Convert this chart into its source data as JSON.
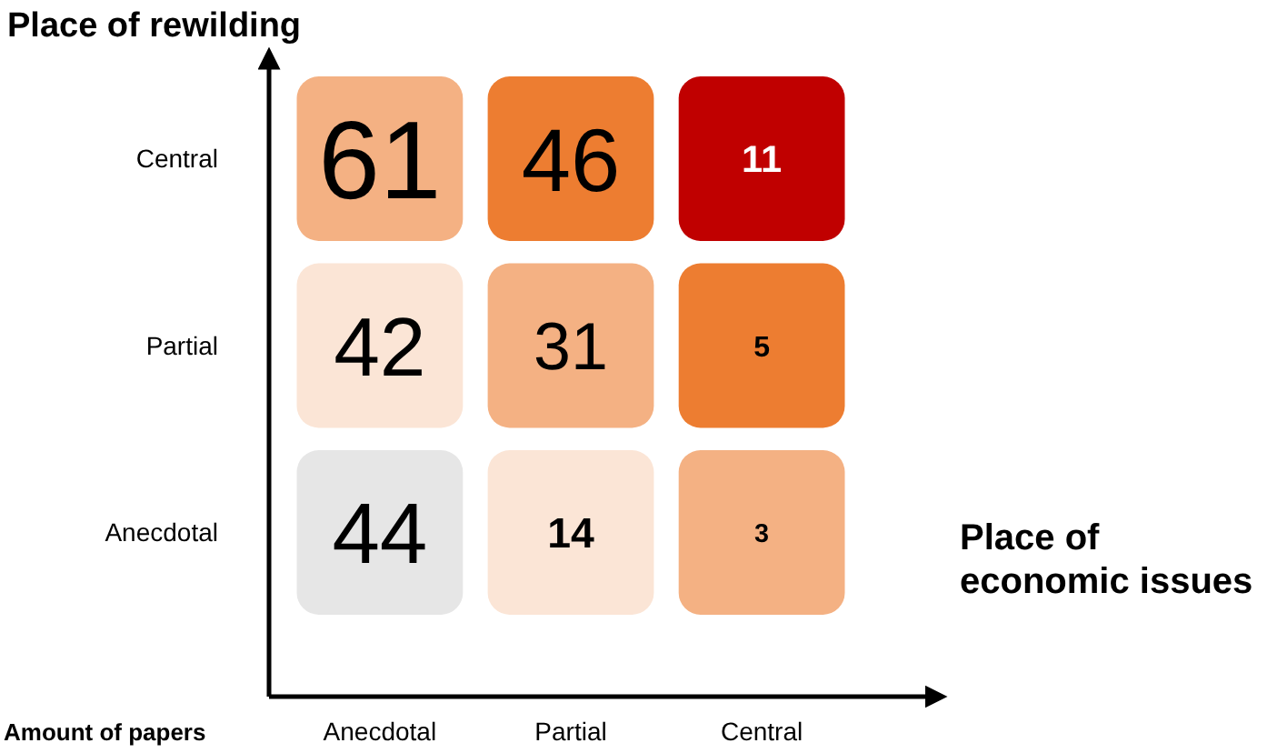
{
  "chart_data": {
    "type": "heatmap",
    "title": "Place of rewilding",
    "xlabel": "Place of economic issues",
    "annotations": [
      "Amount of papers"
    ],
    "data_labels": true,
    "categories": [
      "Anecdotal",
      "Partial",
      "Central"
    ],
    "y_categories": [
      "Central",
      "Partial",
      "Anecdotal"
    ],
    "cells": [
      [
        61,
        46,
        11
      ],
      [
        42,
        31,
        5
      ],
      [
        44,
        14,
        3
      ]
    ],
    "colors": [
      [
        "#f4b183",
        "#ed7d31",
        "#c00000"
      ],
      [
        "#fbe5d6",
        "#f4b183",
        "#ed7d31"
      ],
      [
        "#e6e6e6",
        "#fbe5d6",
        "#f4b183"
      ]
    ]
  }
}
